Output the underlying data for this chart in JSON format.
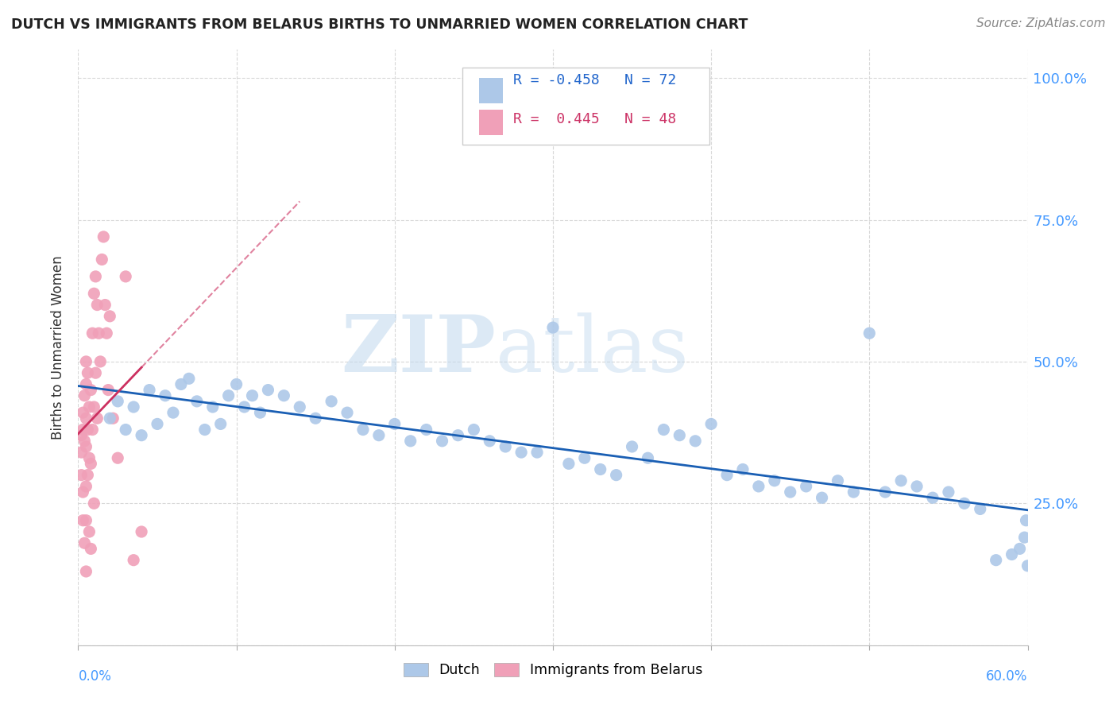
{
  "title": "DUTCH VS IMMIGRANTS FROM BELARUS BIRTHS TO UNMARRIED WOMEN CORRELATION CHART",
  "source": "Source: ZipAtlas.com",
  "ylabel": "Births to Unmarried Women",
  "xlim": [
    0.0,
    0.6
  ],
  "ylim": [
    0.0,
    1.05
  ],
  "ytick_values": [
    0.0,
    0.25,
    0.5,
    0.75,
    1.0
  ],
  "ytick_labels_right": [
    "",
    "25.0%",
    "50.0%",
    "75.0%",
    "100.0%"
  ],
  "watermark": "ZIPatlas",
  "legend_blue_r": "R = -0.458",
  "legend_blue_n": "N = 72",
  "legend_pink_r": "R =  0.445",
  "legend_pink_n": "N = 48",
  "blue_color": "#adc8e8",
  "pink_color": "#f0a0b8",
  "blue_line_color": "#1a5fb4",
  "pink_line_color": "#cc3060",
  "background_color": "#ffffff",
  "legend_text_blue": "#2266cc",
  "legend_text_pink": "#cc3366",
  "watermark_color": "#d8eaf8",
  "grid_color": "#d8d8d8",
  "right_axis_color": "#4499ff",
  "dutch_x": [
    0.02,
    0.025,
    0.03,
    0.035,
    0.04,
    0.045,
    0.05,
    0.055,
    0.06,
    0.065,
    0.07,
    0.075,
    0.08,
    0.085,
    0.09,
    0.095,
    0.1,
    0.105,
    0.11,
    0.115,
    0.12,
    0.13,
    0.14,
    0.15,
    0.16,
    0.17,
    0.18,
    0.19,
    0.2,
    0.21,
    0.22,
    0.23,
    0.24,
    0.25,
    0.26,
    0.27,
    0.28,
    0.29,
    0.3,
    0.31,
    0.32,
    0.33,
    0.34,
    0.35,
    0.36,
    0.37,
    0.38,
    0.39,
    0.4,
    0.41,
    0.42,
    0.43,
    0.44,
    0.45,
    0.46,
    0.47,
    0.48,
    0.49,
    0.5,
    0.51,
    0.52,
    0.53,
    0.54,
    0.55,
    0.56,
    0.57,
    0.58,
    0.59,
    0.595,
    0.598,
    0.599,
    0.6
  ],
  "dutch_y": [
    0.4,
    0.43,
    0.38,
    0.42,
    0.37,
    0.45,
    0.39,
    0.44,
    0.41,
    0.46,
    0.47,
    0.43,
    0.38,
    0.42,
    0.39,
    0.44,
    0.46,
    0.42,
    0.44,
    0.41,
    0.45,
    0.44,
    0.42,
    0.4,
    0.43,
    0.41,
    0.38,
    0.37,
    0.39,
    0.36,
    0.38,
    0.36,
    0.37,
    0.38,
    0.36,
    0.35,
    0.34,
    0.34,
    0.56,
    0.32,
    0.33,
    0.31,
    0.3,
    0.35,
    0.33,
    0.38,
    0.37,
    0.36,
    0.39,
    0.3,
    0.31,
    0.28,
    0.29,
    0.27,
    0.28,
    0.26,
    0.29,
    0.27,
    0.55,
    0.27,
    0.29,
    0.28,
    0.26,
    0.27,
    0.25,
    0.24,
    0.15,
    0.16,
    0.17,
    0.19,
    0.22,
    0.14
  ],
  "belarus_x": [
    0.002,
    0.002,
    0.002,
    0.003,
    0.003,
    0.003,
    0.003,
    0.004,
    0.004,
    0.004,
    0.005,
    0.005,
    0.005,
    0.005,
    0.005,
    0.005,
    0.005,
    0.006,
    0.006,
    0.006,
    0.007,
    0.007,
    0.007,
    0.008,
    0.008,
    0.008,
    0.009,
    0.009,
    0.01,
    0.01,
    0.01,
    0.011,
    0.011,
    0.012,
    0.012,
    0.013,
    0.014,
    0.015,
    0.016,
    0.017,
    0.018,
    0.019,
    0.02,
    0.022,
    0.025,
    0.03,
    0.035,
    0.04
  ],
  "belarus_y": [
    0.37,
    0.34,
    0.3,
    0.41,
    0.38,
    0.27,
    0.22,
    0.44,
    0.36,
    0.18,
    0.5,
    0.46,
    0.4,
    0.35,
    0.28,
    0.22,
    0.13,
    0.48,
    0.38,
    0.3,
    0.42,
    0.33,
    0.2,
    0.45,
    0.32,
    0.17,
    0.55,
    0.38,
    0.62,
    0.42,
    0.25,
    0.65,
    0.48,
    0.6,
    0.4,
    0.55,
    0.5,
    0.68,
    0.72,
    0.6,
    0.55,
    0.45,
    0.58,
    0.4,
    0.33,
    0.65,
    0.15,
    0.2
  ]
}
